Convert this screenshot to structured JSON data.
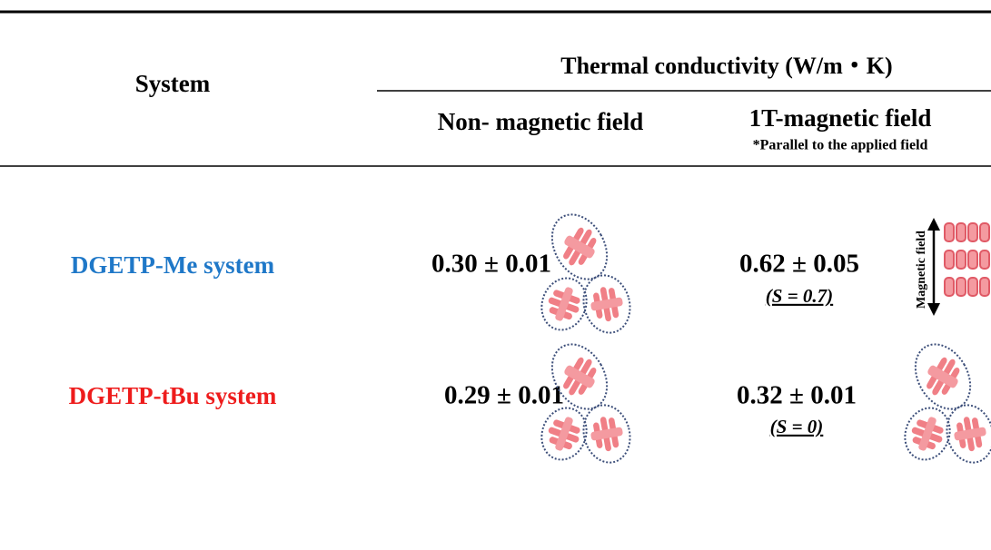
{
  "header": {
    "system": "System",
    "group": "Thermal conductivity (W/m・K)",
    "col1": "Non- magnetic  field",
    "col2": "1T-magnetic field",
    "col2_note": "*Parallel to the applied field"
  },
  "rows": [
    {
      "system": "DGETP-Me system",
      "non_magnetic": "0.30 ± 0.01",
      "magnetic": "0.62 ± 0.05",
      "order": "(S = 0.7)"
    },
    {
      "system": "DGETP-tBu system",
      "non_magnetic": "0.29 ± 0.01",
      "magnetic": "0.32 ± 0.01",
      "order": "(S = 0)"
    }
  ],
  "figure": {
    "arrow_label": "Magnetic field"
  }
}
